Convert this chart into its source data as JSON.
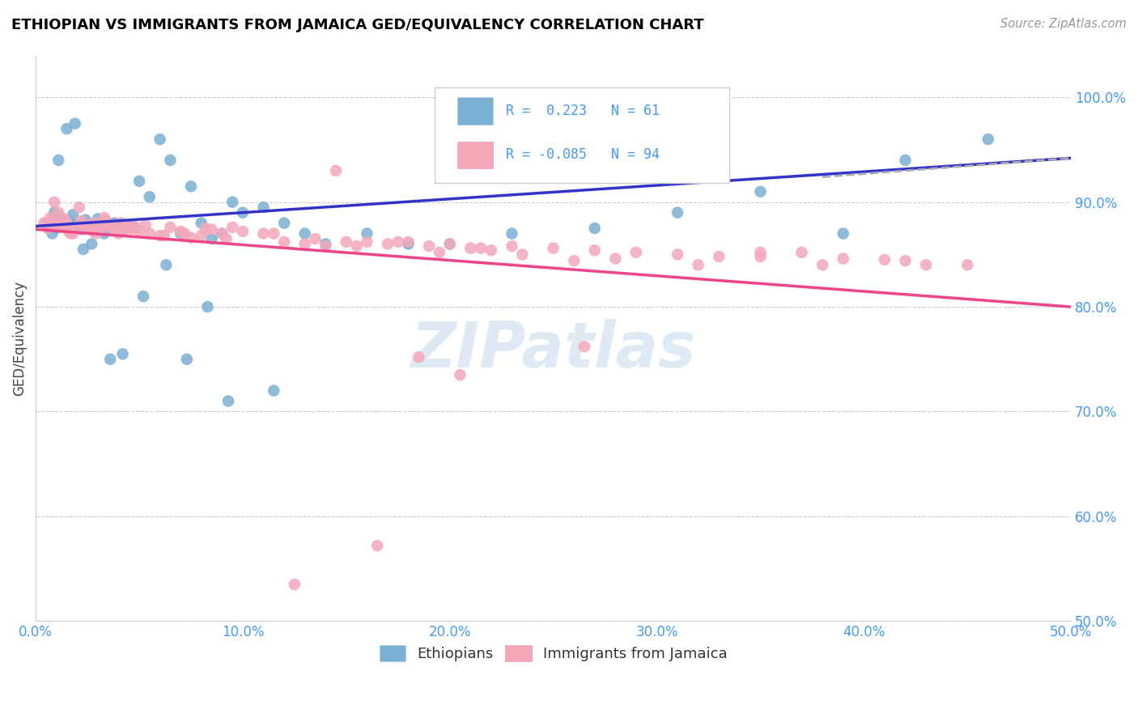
{
  "title": "ETHIOPIAN VS IMMIGRANTS FROM JAMAICA GED/EQUIVALENCY CORRELATION CHART",
  "source": "Source: ZipAtlas.com",
  "ylabel": "GED/Equivalency",
  "legend_label1": "Ethiopians",
  "legend_label2": "Immigrants from Jamaica",
  "watermark": "ZIPatlas",
  "blue_color": "#7bafd4",
  "pink_color": "#f4a7b9",
  "line_blue": "#3333cc",
  "line_pink": "#ee4488",
  "line_gray": "#aaaaaa",
  "axis_color": "#4499ff",
  "title_color": "#000000",
  "xlim": [
    0.0,
    0.5
  ],
  "ylim": [
    0.5,
    1.04
  ],
  "ytick_vals": [
    0.5,
    0.6,
    0.7,
    0.8,
    0.9,
    1.0
  ],
  "ytick_labels": [
    "50.0%",
    "60.0%",
    "70.0%",
    "80.0%",
    "90.0%",
    "100.0%"
  ],
  "xtick_vals": [
    0.0,
    0.1,
    0.2,
    0.3,
    0.4,
    0.5
  ],
  "xtick_labels": [
    "0.0%",
    "10.0%",
    "20.0%",
    "30.0%",
    "40.0%",
    "50.0%"
  ],
  "blue_scatter_x": [
    0.005,
    0.008,
    0.01,
    0.012,
    0.014,
    0.016,
    0.018,
    0.02,
    0.022,
    0.024,
    0.026,
    0.028,
    0.03,
    0.032,
    0.035,
    0.038,
    0.04,
    0.043,
    0.045,
    0.048,
    0.05,
    0.055,
    0.06,
    0.065,
    0.07,
    0.075,
    0.08,
    0.085,
    0.09,
    0.095,
    0.1,
    0.11,
    0.12,
    0.13,
    0.14,
    0.16,
    0.18,
    0.2,
    0.23,
    0.27,
    0.31,
    0.35,
    0.39,
    0.42,
    0.46,
    0.006,
    0.009,
    0.011,
    0.015,
    0.019,
    0.023,
    0.027,
    0.033,
    0.036,
    0.042,
    0.052,
    0.063,
    0.073,
    0.083,
    0.093,
    0.115
  ],
  "blue_scatter_y": [
    0.88,
    0.87,
    0.875,
    0.885,
    0.876,
    0.882,
    0.888,
    0.878,
    0.874,
    0.883,
    0.879,
    0.872,
    0.884,
    0.877,
    0.875,
    0.88,
    0.872,
    0.876,
    0.878,
    0.876,
    0.92,
    0.905,
    0.96,
    0.94,
    0.87,
    0.915,
    0.88,
    0.865,
    0.87,
    0.9,
    0.89,
    0.895,
    0.88,
    0.87,
    0.86,
    0.87,
    0.86,
    0.86,
    0.87,
    0.875,
    0.89,
    0.91,
    0.87,
    0.94,
    0.96,
    0.875,
    0.89,
    0.94,
    0.97,
    0.975,
    0.855,
    0.86,
    0.87,
    0.75,
    0.755,
    0.81,
    0.84,
    0.75,
    0.8,
    0.71,
    0.72
  ],
  "pink_scatter_x": [
    0.004,
    0.006,
    0.008,
    0.01,
    0.012,
    0.014,
    0.016,
    0.018,
    0.02,
    0.022,
    0.024,
    0.026,
    0.028,
    0.03,
    0.032,
    0.034,
    0.036,
    0.038,
    0.04,
    0.042,
    0.044,
    0.046,
    0.048,
    0.05,
    0.055,
    0.06,
    0.065,
    0.07,
    0.075,
    0.08,
    0.085,
    0.09,
    0.095,
    0.1,
    0.11,
    0.12,
    0.13,
    0.14,
    0.15,
    0.16,
    0.17,
    0.18,
    0.19,
    0.2,
    0.21,
    0.22,
    0.23,
    0.25,
    0.27,
    0.29,
    0.31,
    0.33,
    0.35,
    0.37,
    0.39,
    0.42,
    0.45,
    0.007,
    0.009,
    0.011,
    0.015,
    0.017,
    0.021,
    0.025,
    0.029,
    0.033,
    0.037,
    0.041,
    0.045,
    0.053,
    0.062,
    0.072,
    0.082,
    0.092,
    0.115,
    0.135,
    0.155,
    0.175,
    0.195,
    0.215,
    0.235,
    0.26,
    0.28,
    0.32,
    0.41,
    0.43,
    0.35,
    0.38,
    0.145,
    0.205,
    0.265,
    0.185,
    0.165,
    0.125
  ],
  "pink_scatter_y": [
    0.88,
    0.875,
    0.882,
    0.878,
    0.876,
    0.884,
    0.872,
    0.87,
    0.876,
    0.882,
    0.874,
    0.878,
    0.88,
    0.872,
    0.876,
    0.882,
    0.876,
    0.874,
    0.87,
    0.872,
    0.878,
    0.874,
    0.876,
    0.872,
    0.87,
    0.868,
    0.876,
    0.872,
    0.866,
    0.868,
    0.874,
    0.87,
    0.876,
    0.872,
    0.87,
    0.862,
    0.86,
    0.858,
    0.862,
    0.862,
    0.86,
    0.862,
    0.858,
    0.86,
    0.856,
    0.854,
    0.858,
    0.856,
    0.854,
    0.852,
    0.85,
    0.848,
    0.848,
    0.852,
    0.846,
    0.844,
    0.84,
    0.885,
    0.9,
    0.89,
    0.88,
    0.87,
    0.895,
    0.875,
    0.87,
    0.885,
    0.878,
    0.88,
    0.876,
    0.878,
    0.868,
    0.87,
    0.875,
    0.865,
    0.87,
    0.865,
    0.858,
    0.862,
    0.852,
    0.856,
    0.85,
    0.844,
    0.846,
    0.84,
    0.845,
    0.84,
    0.852,
    0.84,
    0.93,
    0.735,
    0.762,
    0.752,
    0.572,
    0.535
  ],
  "blue_line_x": [
    0.0,
    0.5
  ],
  "blue_line_y": [
    0.877,
    0.942
  ],
  "gray_line_x": [
    0.38,
    0.5
  ],
  "gray_line_y": [
    0.924,
    0.942
  ],
  "pink_line_x": [
    0.0,
    0.5
  ],
  "pink_line_y": [
    0.874,
    0.8
  ],
  "leg_r1_text": "R =  0.223",
  "leg_n1_text": "N = 61",
  "leg_r2_text": "R = -0.085",
  "leg_n2_text": "N = 94"
}
